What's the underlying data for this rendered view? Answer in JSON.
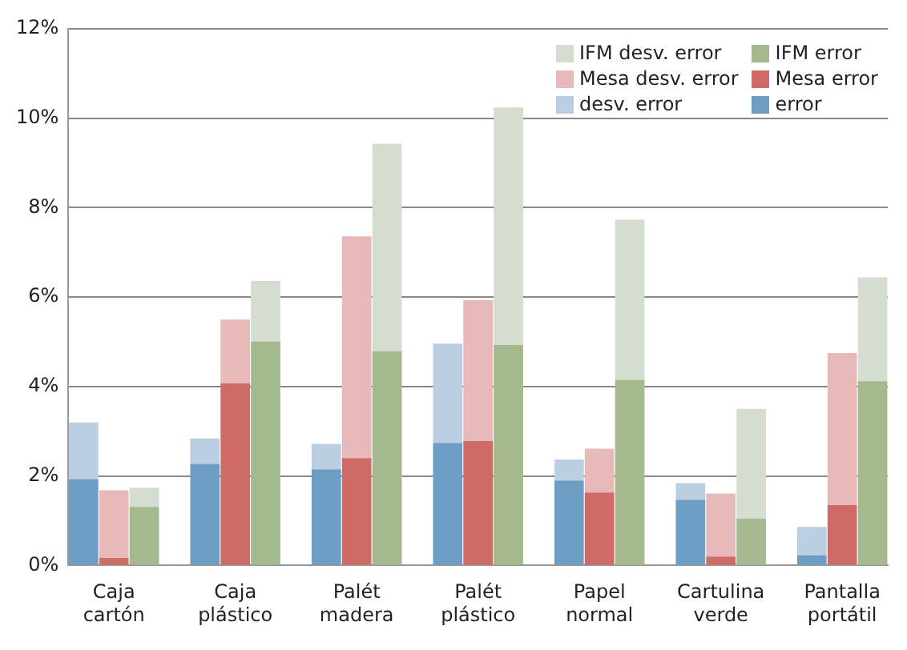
{
  "chart_data": {
    "type": "bar",
    "stacked": true,
    "categories": [
      null,
      "Caja cartón",
      null,
      null,
      null,
      "Caja plástico",
      null,
      null,
      null,
      "Palét madera",
      null,
      null,
      null,
      "Palét plástico",
      null,
      null,
      null,
      "Papel normal",
      null,
      null,
      null,
      "Cartulina verde",
      null,
      null,
      null,
      "Pantalla portátil",
      null
    ],
    "series": [
      {
        "name": "error",
        "color": "#6f9ec4",
        "values": [
          1.93,
          null,
          null,
          null,
          2.27,
          null,
          null,
          null,
          2.15,
          null,
          null,
          null,
          2.74,
          null,
          null,
          null,
          1.9,
          null,
          null,
          null,
          1.47,
          null,
          null,
          null,
          0.23,
          null,
          null
        ]
      },
      {
        "name": "desv. error",
        "color": "#bccfe2",
        "values": [
          1.27,
          null,
          null,
          null,
          0.57,
          null,
          null,
          null,
          0.57,
          null,
          null,
          null,
          2.22,
          null,
          null,
          null,
          0.47,
          null,
          null,
          null,
          0.37,
          null,
          null,
          null,
          0.63,
          null,
          null
        ]
      },
      {
        "name": "Mesa error",
        "color": "#d06a66",
        "values": [
          null,
          0.17,
          null,
          null,
          null,
          4.07,
          null,
          null,
          null,
          2.4,
          null,
          null,
          null,
          2.78,
          null,
          null,
          null,
          1.63,
          null,
          null,
          null,
          0.2,
          null,
          null,
          null,
          1.35,
          null
        ]
      },
      {
        "name": "Mesa desv. error",
        "color": "#e8b9b9",
        "values": [
          null,
          1.51,
          null,
          null,
          null,
          1.43,
          null,
          null,
          null,
          4.96,
          null,
          null,
          null,
          3.15,
          null,
          null,
          null,
          0.98,
          null,
          null,
          null,
          1.41,
          null,
          null,
          null,
          3.4,
          null
        ]
      },
      {
        "name": "IFM error",
        "color": "#a4b98e",
        "values": [
          null,
          null,
          1.31,
          null,
          null,
          null,
          5.01,
          null,
          null,
          null,
          4.79,
          null,
          null,
          null,
          4.93,
          null,
          null,
          null,
          4.15,
          null,
          null,
          null,
          1.05,
          null,
          null,
          null,
          4.12
        ]
      },
      {
        "name": "IFM desv. error",
        "color": "#d5ddd0",
        "values": [
          null,
          null,
          0.43,
          null,
          null,
          null,
          1.35,
          null,
          null,
          null,
          4.64,
          null,
          null,
          null,
          5.31,
          null,
          null,
          null,
          3.58,
          null,
          null,
          null,
          2.45,
          null,
          null,
          null,
          2.32
        ]
      }
    ],
    "ylim": [
      0,
      12
    ],
    "yticks": [
      {
        "value": 0,
        "label": "0%"
      },
      {
        "value": 2,
        "label": "2%"
      },
      {
        "value": 4,
        "label": "4%"
      },
      {
        "value": 6,
        "label": "6%"
      },
      {
        "value": 8,
        "label": "8%"
      },
      {
        "value": 10,
        "label": "10%"
      },
      {
        "value": 12,
        "label": "12%"
      }
    ],
    "grid": "y",
    "legend": "top right"
  }
}
